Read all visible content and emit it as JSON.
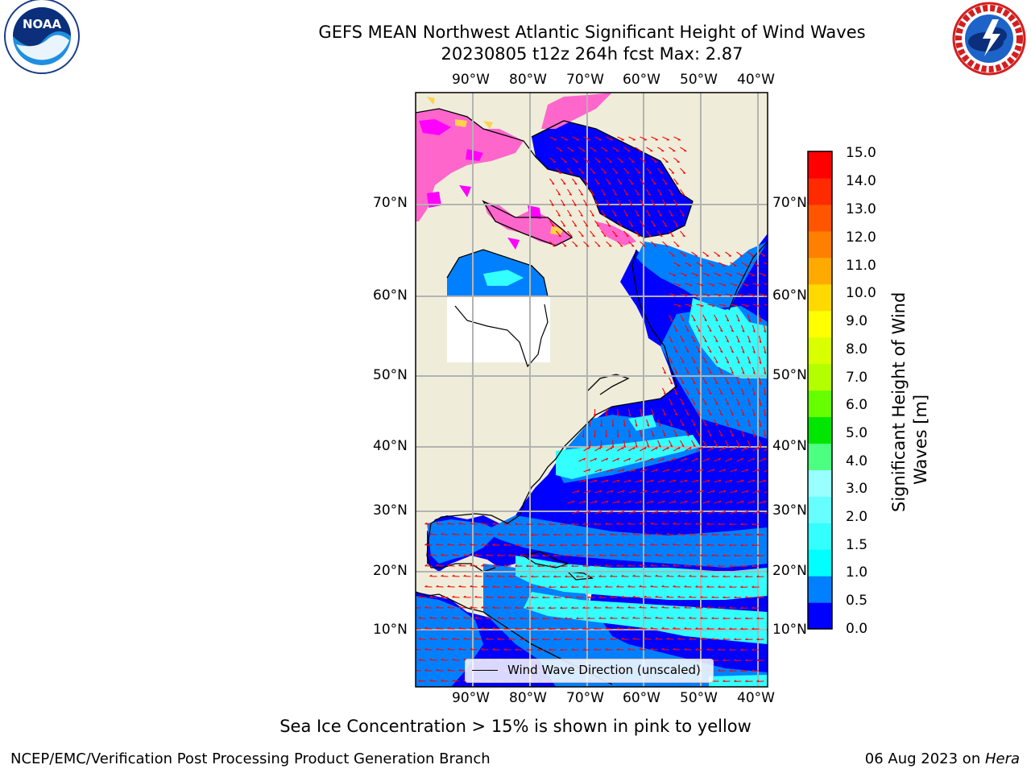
{
  "title": {
    "line1": "GEFS MEAN Northwest Atlantic Significant Height of Wind Waves",
    "line2": "20230805 t12z 264h fcst   Max: 2.87"
  },
  "logos": {
    "left": {
      "icon": "noaa-logo",
      "text": "NOAA",
      "ring_text": "NATIONAL OCEANIC AND ATMOSPHERIC ADMINISTRATION · U.S. DEPARTMENT OF COMMERCE"
    },
    "right": {
      "icon": "nws-logo",
      "ring_text": "NATIONAL WEATHER SERVICE"
    }
  },
  "map": {
    "lon_labels": [
      "90°W",
      "80°W",
      "70°W",
      "60°W",
      "50°W",
      "40°W"
    ],
    "lat_labels": [
      "70°N",
      "60°N",
      "50°N",
      "40°N",
      "30°N",
      "20°N",
      "10°N"
    ],
    "legend_label": "Wind Wave Direction (unscaled)",
    "colors": {
      "land": "#efedd9",
      "ocean_low": "#0000ff",
      "ocean_mid": "#0080ff",
      "ocean_high": "#00ffff",
      "ocean_highest": "#4dfff4",
      "ice_pink": "#ff66cc",
      "ice_magenta": "#ff00ff",
      "ice_yellow": "#ffd24d",
      "arrow": "#ff0000",
      "grid": "#b3b3b3"
    }
  },
  "colorbar": {
    "ticks": [
      "15.0",
      "14.0",
      "13.0",
      "12.0",
      "11.0",
      "10.0",
      "9.0",
      "8.0",
      "7.0",
      "6.0",
      "5.0",
      "4.0",
      "3.0",
      "2.0",
      "1.5",
      "1.0",
      "0.5",
      "0.0"
    ],
    "colors_bottom_to_top": [
      "#0000ff",
      "#0080ff",
      "#00ffff",
      "#33ffff",
      "#66ffff",
      "#99ffff",
      "#4dff80",
      "#00e600",
      "#66ff00",
      "#b3ff00",
      "#d9ff00",
      "#ffff00",
      "#ffd900",
      "#ffaa00",
      "#ff8000",
      "#ff5500",
      "#ff2a00",
      "#ff0000"
    ],
    "label_line1": "Significant Height of Wind",
    "label_line2": "Waves [m]"
  },
  "subnote": "Sea Ice Concentration > 15% is shown in pink to yellow",
  "footer": {
    "left": "NCEP/EMC/Verification Post Processing Product Generation Branch",
    "date": "06 Aug 2023 on ",
    "machine": "Hera"
  }
}
